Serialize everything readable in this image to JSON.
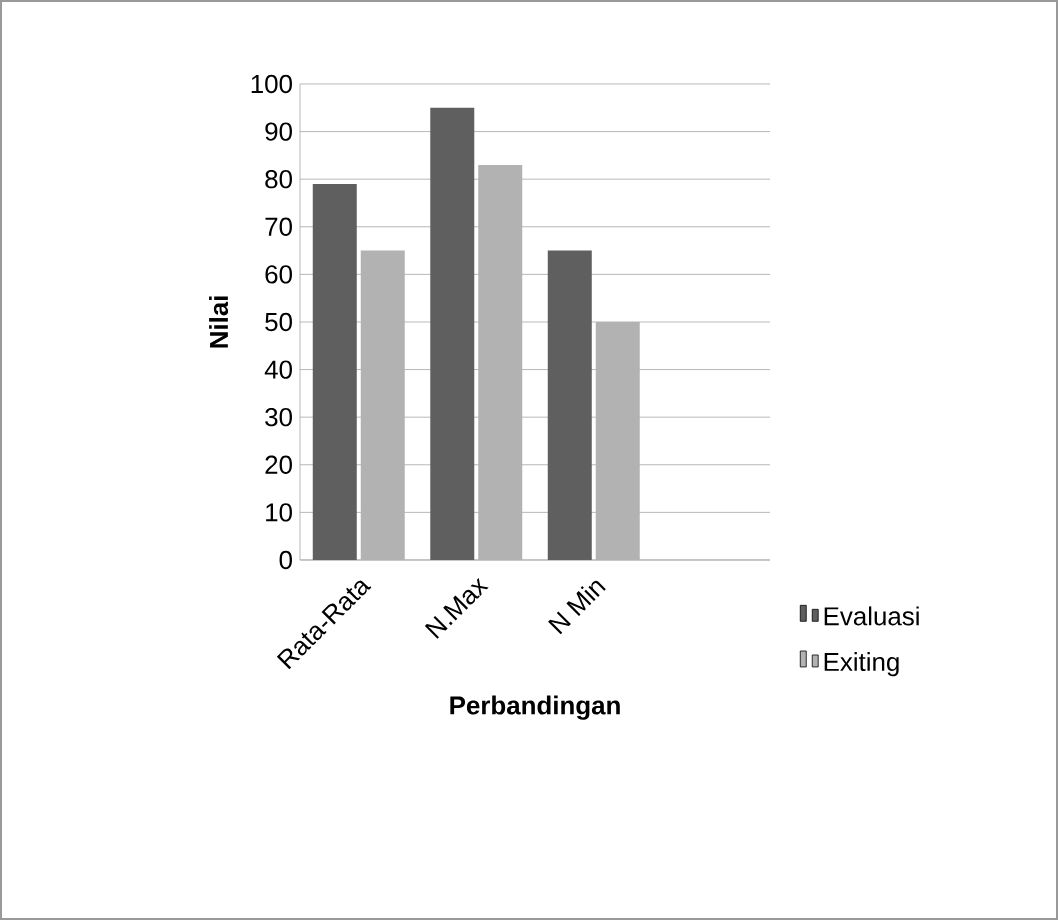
{
  "chart_data": {
    "type": "bar",
    "xlabel": "Perbandingan",
    "ylabel": "Nilai",
    "categories": [
      "Rata-Rata",
      "N.Max",
      "N Min",
      null
    ],
    "series": [
      {
        "name": "Evaluasi",
        "color": "#5f5f5f",
        "values": [
          79,
          95,
          65,
          null
        ]
      },
      {
        "name": "Exiting",
        "color": "#b2b2b2",
        "values": [
          65,
          83,
          50,
          null
        ]
      }
    ],
    "ylim": [
      0,
      100
    ],
    "yticks": [
      0,
      10,
      20,
      30,
      40,
      50,
      60,
      70,
      80,
      90,
      100
    ],
    "grid": "y",
    "legend": "right"
  }
}
